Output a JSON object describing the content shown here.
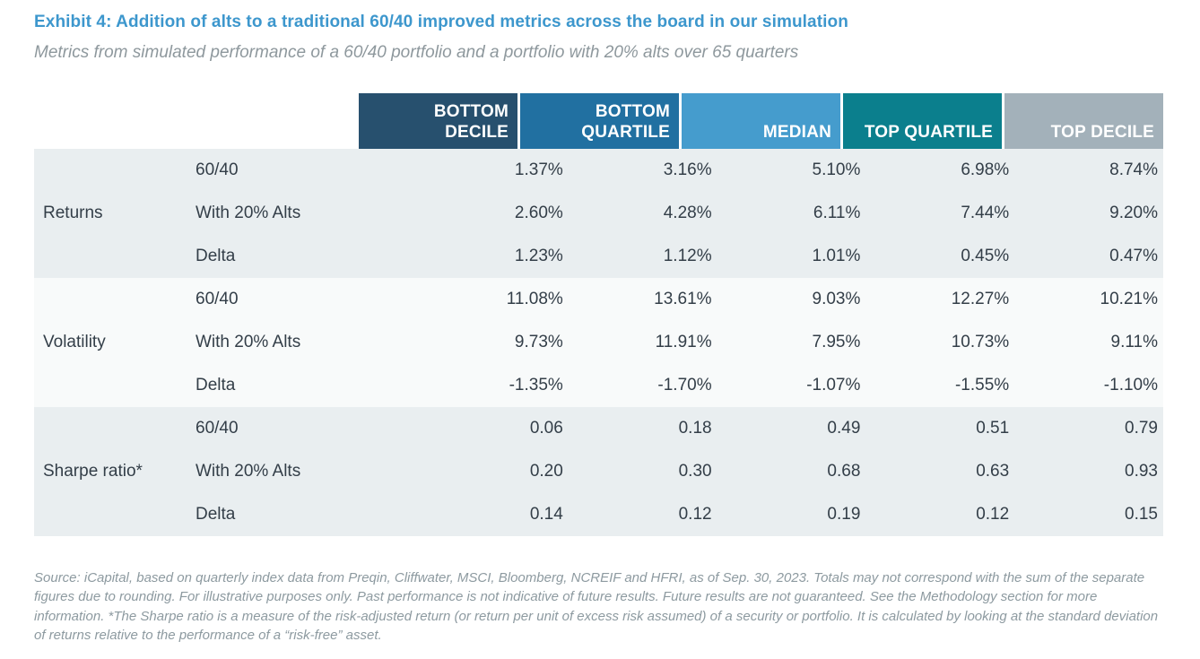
{
  "title": "Exhibit 4: Addition of alts to a traditional 60/40 improved metrics across the board in our simulation",
  "subtitle": "Metrics from simulated performance of a 60/40 portfolio and a portfolio with 20% alts over 65 quarters",
  "colors": {
    "title_blue": "#3d97cd",
    "header_bottom_decile": "#27506e",
    "header_bottom_quartile": "#2170a1",
    "header_median": "#459ccd",
    "header_top_quartile": "#0b7f8d",
    "header_top_decile": "#a3b1ba",
    "band_gray": "#e9eef0",
    "band_light": "#f8fafa",
    "body_text": "#333e48",
    "footnote_gray": "#8d9aa0"
  },
  "chart_data": {
    "type": "table",
    "title": "Exhibit 4: Addition of alts to a traditional 60/40 improved metrics across the board in our simulation",
    "columns": [
      "BOTTOM DECILE",
      "BOTTOM QUARTILE",
      "MEDIAN",
      "TOP QUARTILE",
      "TOP DECILE"
    ],
    "groups": [
      {
        "label": "Returns",
        "rows": [
          {
            "label": "60/40",
            "values": [
              "1.37%",
              "3.16%",
              "5.10%",
              "6.98%",
              "8.74%"
            ]
          },
          {
            "label": "With 20% Alts",
            "values": [
              "2.60%",
              "4.28%",
              "6.11%",
              "7.44%",
              "9.20%"
            ]
          },
          {
            "label": "Delta",
            "values": [
              "1.23%",
              "1.12%",
              "1.01%",
              "0.45%",
              "0.47%"
            ]
          }
        ]
      },
      {
        "label": "Volatility",
        "rows": [
          {
            "label": "60/40",
            "values": [
              "11.08%",
              "13.61%",
              "9.03%",
              "12.27%",
              "10.21%"
            ]
          },
          {
            "label": "With 20% Alts",
            "values": [
              "9.73%",
              "11.91%",
              "7.95%",
              "10.73%",
              "9.11%"
            ]
          },
          {
            "label": "Delta",
            "values": [
              "-1.35%",
              "-1.70%",
              "-1.07%",
              "-1.55%",
              "-1.10%"
            ]
          }
        ]
      },
      {
        "label": "Sharpe ratio*",
        "rows": [
          {
            "label": "60/40",
            "values": [
              "0.06",
              "0.18",
              "0.49",
              "0.51",
              "0.79"
            ]
          },
          {
            "label": "With 20% Alts",
            "values": [
              "0.20",
              "0.30",
              "0.68",
              "0.63",
              "0.93"
            ]
          },
          {
            "label": "Delta",
            "values": [
              "0.14",
              "0.12",
              "0.19",
              "0.12",
              "0.15"
            ]
          }
        ]
      }
    ]
  },
  "footnote": "Source: iCapital, based on quarterly index data from Preqin, Cliffwater, MSCI, Bloomberg, NCREIF and HFRI, as of Sep.  30, 2023. Totals may not correspond with the sum of the separate figures due to rounding. For illustrative purposes only. Past performance is not indicative of future results. Future results are not guaranteed. See the Methodology section for more information. *The Sharpe ratio is a measure of the risk-adjusted return (or return per unit of excess risk assumed) of a security or portfolio. It is calculated by looking at the standard deviation of returns relative to the performance of a “risk-free” asset."
}
